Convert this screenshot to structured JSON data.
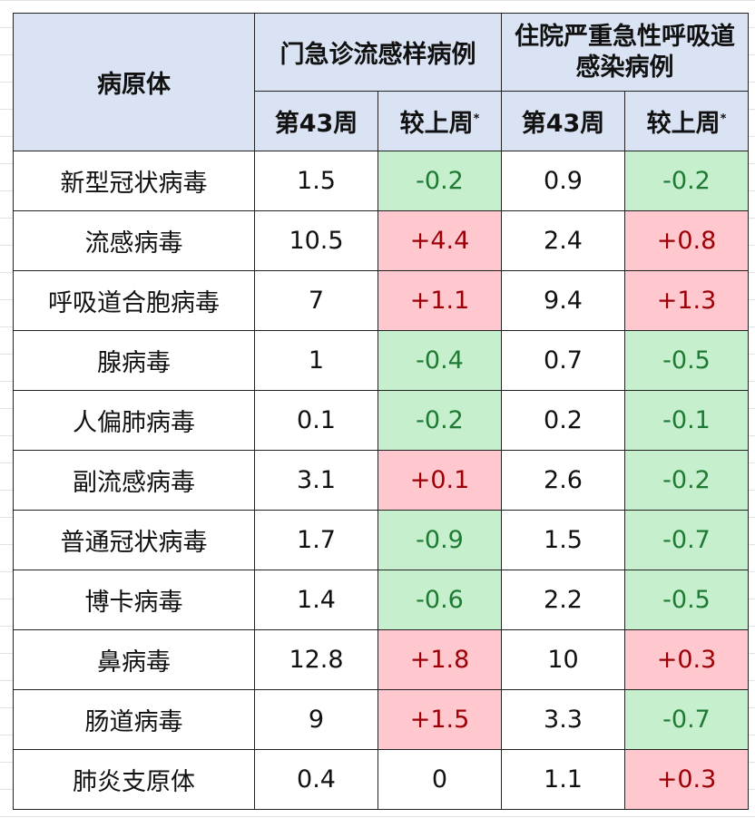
{
  "table": {
    "header": {
      "pathogen": "病原体",
      "groups": [
        "门急诊流感样病例",
        "住院严重急性呼吸道感染病例"
      ],
      "subheaders": [
        {
          "text": "第43周"
        },
        {
          "text": "较上周",
          "note": "*"
        },
        {
          "text": "第43周"
        },
        {
          "text": "较上周",
          "note": "*"
        }
      ]
    },
    "rows": [
      [
        "新型冠状病毒",
        "1.5",
        "-0.2",
        "0.9",
        "-0.2"
      ],
      [
        "流感病毒",
        "10.5",
        "+4.4",
        "2.4",
        "+0.8"
      ],
      [
        "呼吸道合胞病毒",
        "7",
        "+1.1",
        "9.4",
        "+1.3"
      ],
      [
        "腺病毒",
        "1",
        "-0.4",
        "0.7",
        "-0.5"
      ],
      [
        "人偏肺病毒",
        "0.1",
        "-0.2",
        "0.2",
        "-0.1"
      ],
      [
        "副流感病毒",
        "3.1",
        "+0.1",
        "2.6",
        "-0.2"
      ],
      [
        "普通冠状病毒",
        "1.7",
        "-0.9",
        "1.5",
        "-0.7"
      ],
      [
        "博卡病毒",
        "1.4",
        "-0.6",
        "2.2",
        "-0.5"
      ],
      [
        "鼻病毒",
        "12.8",
        "+1.8",
        "10",
        "+0.3"
      ],
      [
        "肠道病毒",
        "9",
        "+1.5",
        "3.3",
        "-0.7"
      ],
      [
        "肺炎支原体",
        "0.4",
        "0",
        "1.1",
        "+0.3"
      ]
    ]
  }
}
